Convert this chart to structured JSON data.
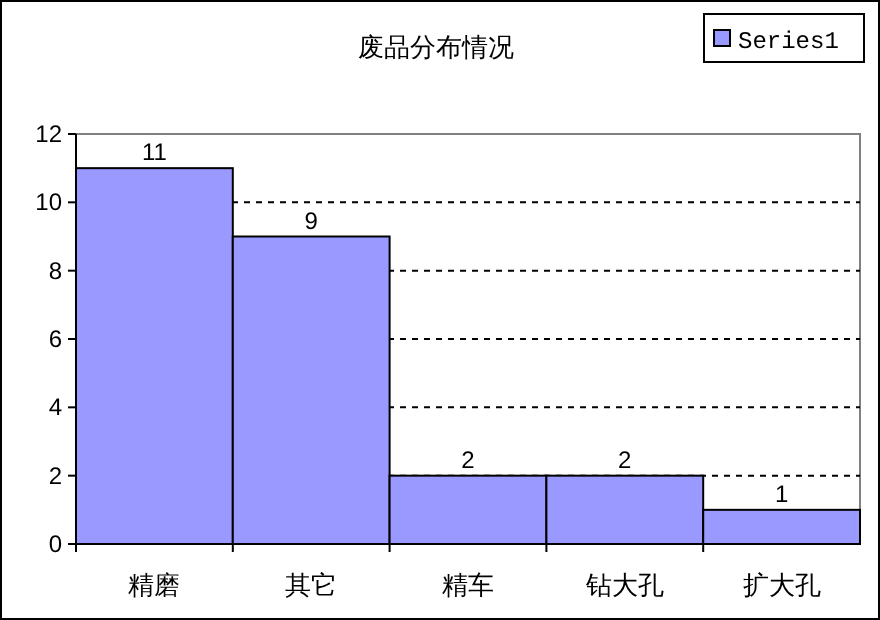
{
  "chart_data": {
    "type": "bar",
    "title": "废品分布情况",
    "categories": [
      "精磨",
      "其它",
      "精车",
      "钻大孔",
      "扩大孔"
    ],
    "series": [
      {
        "name": "Series1",
        "color": "#9999ff",
        "values": [
          11,
          9,
          2,
          2,
          1
        ]
      }
    ],
    "ylim": [
      0,
      12
    ],
    "yticks": [
      0,
      2,
      4,
      6,
      8,
      10,
      12
    ],
    "grid": "y",
    "legend": "top right",
    "data_labels": true
  }
}
